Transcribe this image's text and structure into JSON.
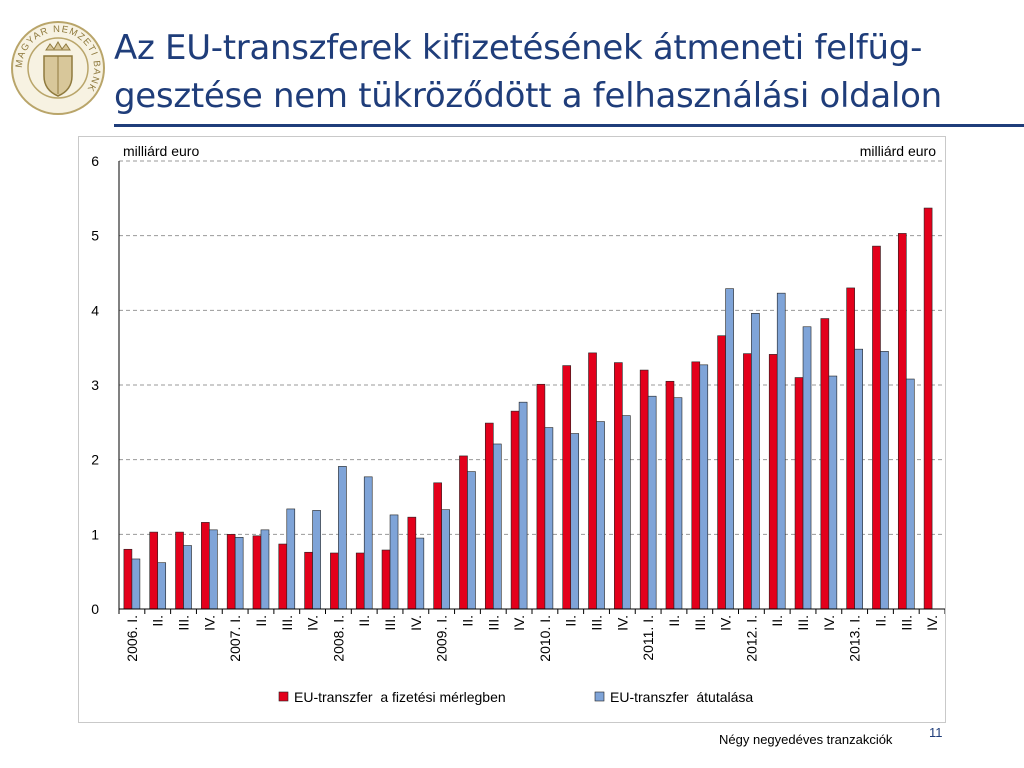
{
  "slide": {
    "title": "Az EU-transzferek kifizetésének átmeneti felfüg-gesztése nem tükröződött a felhasználási oldalon",
    "footnote": "Négy negyedéves tranzakciók",
    "page_number": "11",
    "logo_ring_text": "MAGYAR NEMZETI BANK"
  },
  "colors": {
    "title": "#1f3d7a",
    "series_red": "#e3001b",
    "series_blue": "#7fa4d8"
  },
  "chart_data": {
    "type": "bar",
    "left_unit_label": "milliárd euro",
    "right_unit_label": "milliárd euro",
    "ylim": [
      0,
      6
    ],
    "yticks": [
      "0",
      "1",
      "2",
      "3",
      "4",
      "5",
      "6"
    ],
    "grid": true,
    "legend_position": "bottom",
    "categories": [
      "2006. I.",
      "II.",
      "III.",
      "IV.",
      "2007. I.",
      "II.",
      "III.",
      "IV.",
      "2008. I.",
      "II.",
      "III.",
      "IV.",
      "2009. I.",
      "II.",
      "III.",
      "IV.",
      "2010. I.",
      "II.",
      "III.",
      "IV.",
      "2011. I.",
      "II.",
      "III.",
      "IV.",
      "2012. I.",
      "II.",
      "III.",
      "IV.",
      "2013. I.",
      "II.",
      "III.",
      "IV."
    ],
    "series": [
      {
        "name": "EU-transzfer  a fizetési mérlegben",
        "color": "#e3001b",
        "values": [
          0.8,
          1.03,
          1.03,
          1.16,
          1.0,
          0.98,
          0.87,
          0.76,
          0.75,
          0.75,
          0.79,
          1.23,
          1.69,
          2.05,
          2.49,
          2.65,
          3.01,
          3.26,
          3.43,
          3.3,
          3.2,
          3.05,
          3.31,
          3.66,
          3.42,
          3.41,
          3.1,
          3.89,
          4.3,
          4.86,
          5.03,
          5.37
        ]
      },
      {
        "name": "EU-transzfer  átutalása",
        "color": "#7fa4d8",
        "values": [
          0.67,
          0.62,
          0.85,
          1.06,
          0.96,
          1.06,
          1.34,
          1.32,
          1.91,
          1.77,
          1.26,
          0.95,
          1.33,
          1.84,
          2.21,
          2.77,
          2.43,
          2.35,
          2.51,
          2.59,
          2.85,
          2.83,
          3.27,
          4.29,
          3.96,
          4.23,
          3.78,
          3.12,
          3.48,
          3.45,
          3.08,
          null
        ]
      }
    ]
  }
}
